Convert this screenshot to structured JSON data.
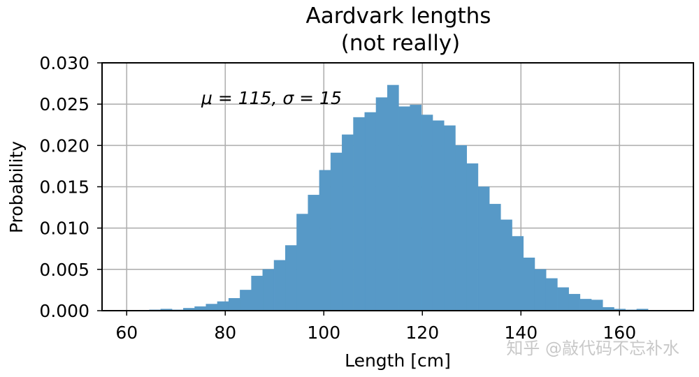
{
  "chart_data": {
    "type": "bar",
    "title_line1": "Aardvark lengths",
    "title_line2": "(not really)",
    "xlabel": "Length [cm]",
    "ylabel": "Probability",
    "annotation": "μ = 115,  σ = 15",
    "xlim": [
      55,
      175
    ],
    "ylim": [
      0,
      0.03
    ],
    "grid": true,
    "bar_color": "#5799c7",
    "xticks": [
      60,
      80,
      100,
      120,
      140,
      160
    ],
    "yticks": [
      "0.000",
      "0.005",
      "0.010",
      "0.015",
      "0.020",
      "0.025",
      "0.030"
    ],
    "bin_width": 2.3,
    "bin_start": 64.6,
    "values": [
      0.0001,
      0.0002,
      0.0001,
      0.0003,
      0.0005,
      0.0008,
      0.0011,
      0.0015,
      0.0025,
      0.0042,
      0.005,
      0.0061,
      0.0079,
      0.0117,
      0.014,
      0.017,
      0.0191,
      0.0213,
      0.0234,
      0.024,
      0.0258,
      0.0273,
      0.0247,
      0.0249,
      0.0237,
      0.023,
      0.0224,
      0.02,
      0.0178,
      0.015,
      0.0129,
      0.011,
      0.009,
      0.0064,
      0.005,
      0.0039,
      0.0028,
      0.002,
      0.0014,
      0.0013,
      0.0004,
      0.0002,
      0.0001,
      0.0002
    ]
  },
  "watermark": "知乎 @敲代码不忘补水"
}
